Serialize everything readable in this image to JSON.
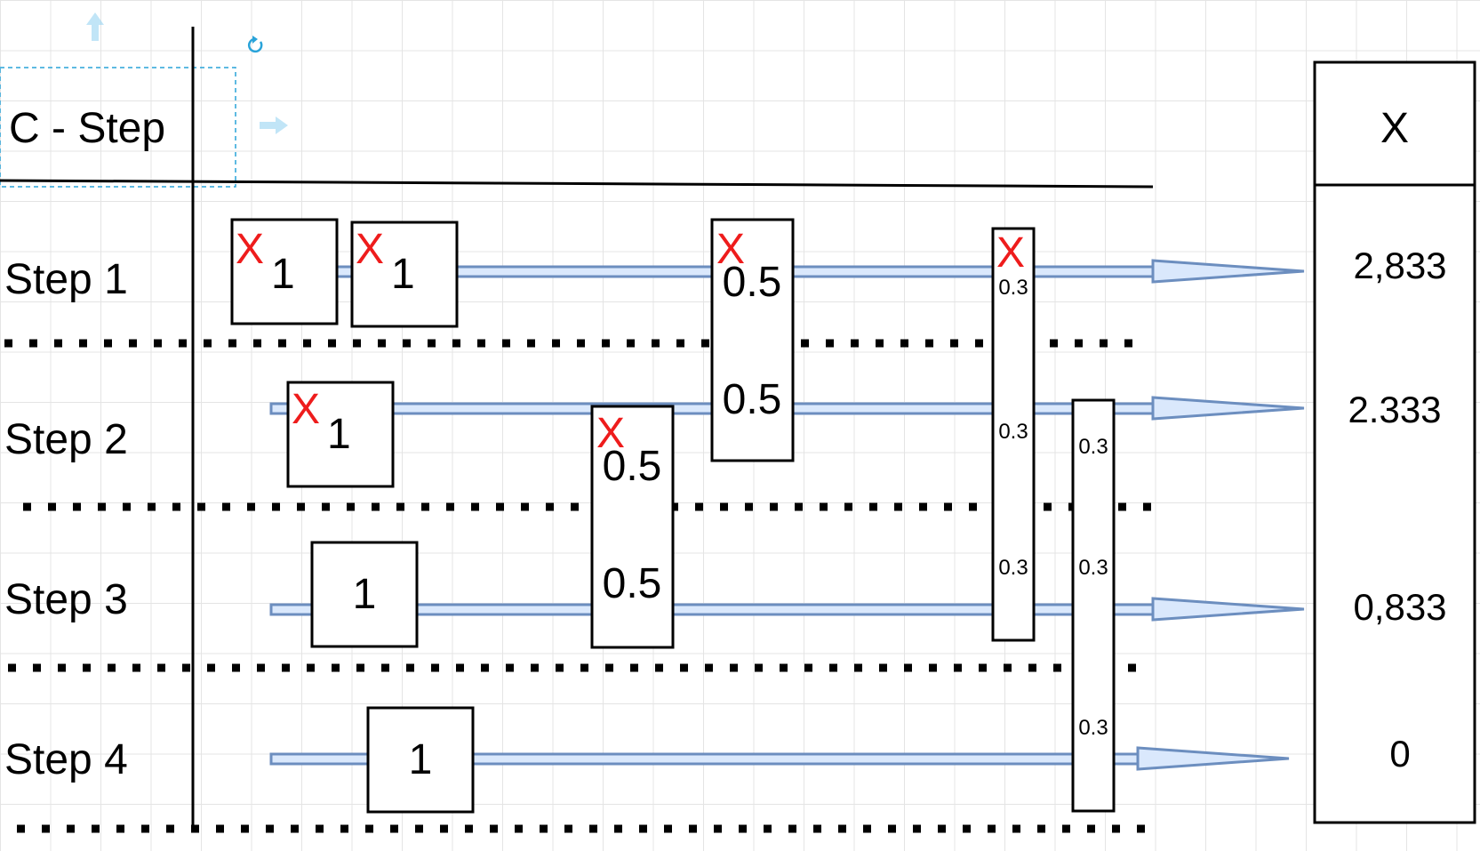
{
  "header": {
    "label": "C - Step"
  },
  "rows": [
    {
      "label": "Step 1"
    },
    {
      "label": "Step 2"
    },
    {
      "label": "Step 3"
    },
    {
      "label": "Step 4"
    }
  ],
  "result_column": {
    "header": "X",
    "values": [
      "2,833",
      "2.333",
      "0,833",
      "0"
    ]
  },
  "boxes": {
    "b1": {
      "value": "1",
      "marker": "X"
    },
    "b2": {
      "value": "1",
      "marker": "X"
    },
    "b3": {
      "value": "1",
      "marker": "X"
    },
    "b4": {
      "value": "1"
    },
    "b5": {
      "value": "1"
    },
    "b6": {
      "top_value": "0.5",
      "bottom_value": "0.5",
      "marker": "X"
    },
    "b7": {
      "top_value": "0.5",
      "bottom_value": "0.5",
      "marker": "X"
    },
    "b8": {
      "values": [
        "0.3",
        "0.3",
        "0.3"
      ],
      "marker": "X"
    },
    "b9": {
      "values": [
        "0.3",
        "0.3",
        "0.3"
      ]
    }
  },
  "colors": {
    "marker": "#ee1c1c",
    "arrow_stroke": "#6c8ebf",
    "arrow_fill": "#dae8fc",
    "selection": "#29a3d9"
  }
}
